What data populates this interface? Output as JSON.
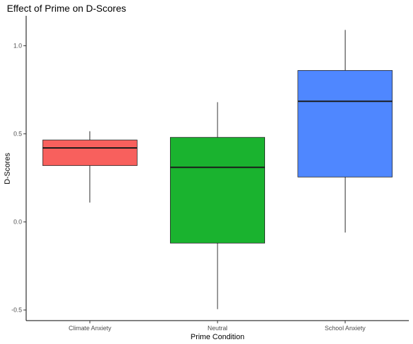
{
  "chart_data": {
    "type": "boxplot",
    "title": "Effect of Prime on D-Scores",
    "xlabel": "Prime Condition",
    "ylabel": "D-Scores",
    "ylim": [
      -0.56,
      1.17
    ],
    "yticks": [
      -0.5,
      0.0,
      0.5,
      1.0
    ],
    "ytick_labels": [
      "-0.5",
      "0.0",
      "0.5",
      "1.0"
    ],
    "grid": false,
    "legend": "none",
    "categories": [
      "Climate Anxiety",
      "Neutral",
      "School Anxiety"
    ],
    "series": [
      {
        "category": "Climate Anxiety",
        "min": 0.11,
        "q1": 0.32,
        "median": 0.42,
        "q3": 0.465,
        "max": 0.515,
        "color": "#f8605d"
      },
      {
        "category": "Neutral",
        "min": -0.495,
        "q1": -0.12,
        "median": 0.31,
        "q3": 0.48,
        "max": 0.68,
        "color": "#1ab32f"
      },
      {
        "category": "School Anxiety",
        "min": -0.06,
        "q1": 0.255,
        "median": 0.685,
        "q3": 0.86,
        "max": 1.09,
        "color": "#4f87ff"
      }
    ]
  }
}
